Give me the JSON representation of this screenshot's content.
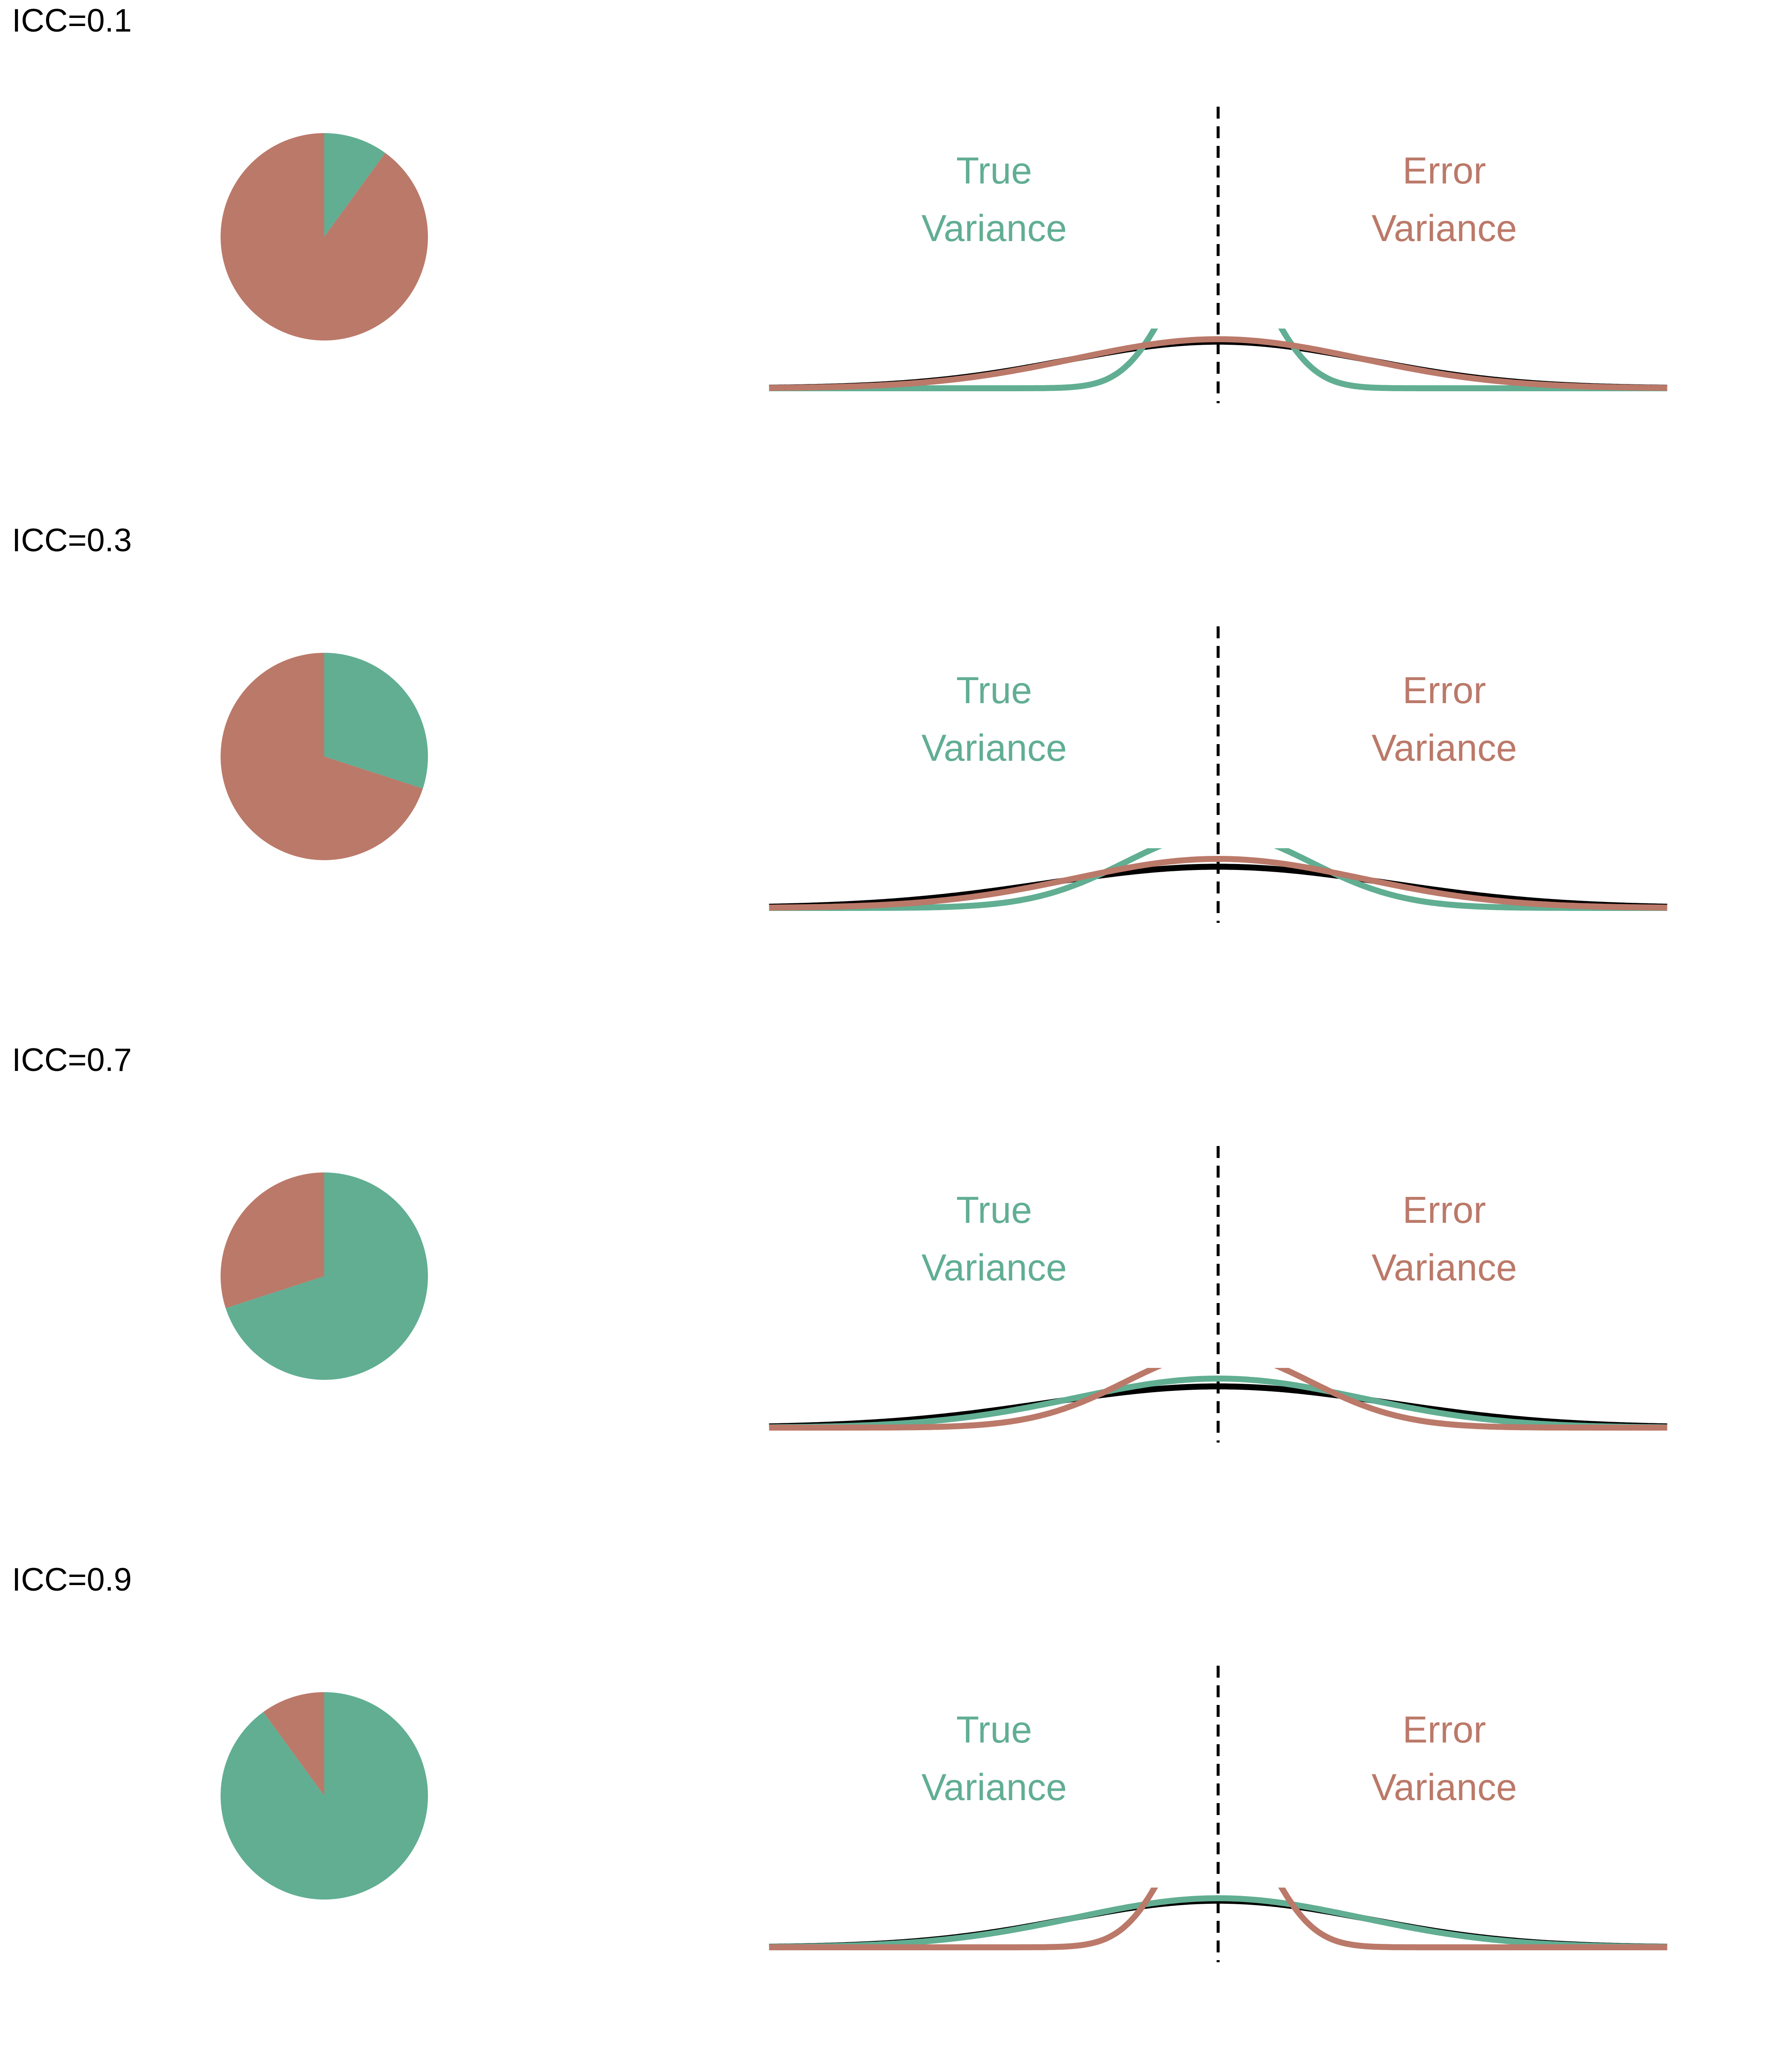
{
  "colors": {
    "true_variance": "#61ae93",
    "error_variance": "#bb7969",
    "observed": "#000000",
    "center_line": "#000000"
  },
  "chart_data": [
    {
      "type": "pie",
      "panel_label": "ICC=0.1",
      "icc": 0.1,
      "pie": {
        "slices": [
          {
            "name": "True Variance",
            "value": 0.1
          },
          {
            "name": "Error Variance",
            "value": 0.9
          }
        ]
      },
      "curves": {
        "true_label": [
          "True",
          "Variance"
        ],
        "error_label": [
          "Error",
          "Variance"
        ],
        "true_sd": 0.33,
        "error_sd": 1.0,
        "observed_sd": 1.053,
        "center_line": "dashed"
      }
    },
    {
      "type": "pie",
      "panel_label": "ICC=0.3",
      "icc": 0.3,
      "pie": {
        "slices": [
          {
            "name": "True Variance",
            "value": 0.3
          },
          {
            "name": "Error Variance",
            "value": 0.7
          }
        ]
      },
      "curves": {
        "true_label": [
          "True",
          "Variance"
        ],
        "error_label": [
          "Error",
          "Variance"
        ],
        "true_sd": 0.65,
        "error_sd": 1.0,
        "observed_sd": 1.19,
        "center_line": "dashed"
      }
    },
    {
      "type": "pie",
      "panel_label": "ICC=0.7",
      "icc": 0.7,
      "pie": {
        "slices": [
          {
            "name": "True Variance",
            "value": 0.7
          },
          {
            "name": "Error Variance",
            "value": 0.3
          }
        ]
      },
      "curves": {
        "true_label": [
          "True",
          "Variance"
        ],
        "error_label": [
          "Error",
          "Variance"
        ],
        "true_sd": 1.0,
        "error_sd": 0.65,
        "observed_sd": 1.19,
        "center_line": "dashed"
      }
    },
    {
      "type": "pie",
      "panel_label": "ICC=0.9",
      "icc": 0.9,
      "pie": {
        "slices": [
          {
            "name": "True Variance",
            "value": 0.9
          },
          {
            "name": "Error Variance",
            "value": 0.1
          }
        ]
      },
      "curves": {
        "true_label": [
          "True",
          "Variance"
        ],
        "error_label": [
          "Error",
          "Variance"
        ],
        "true_sd": 1.0,
        "error_sd": 0.33,
        "observed_sd": 1.053,
        "center_line": "dashed"
      }
    }
  ]
}
